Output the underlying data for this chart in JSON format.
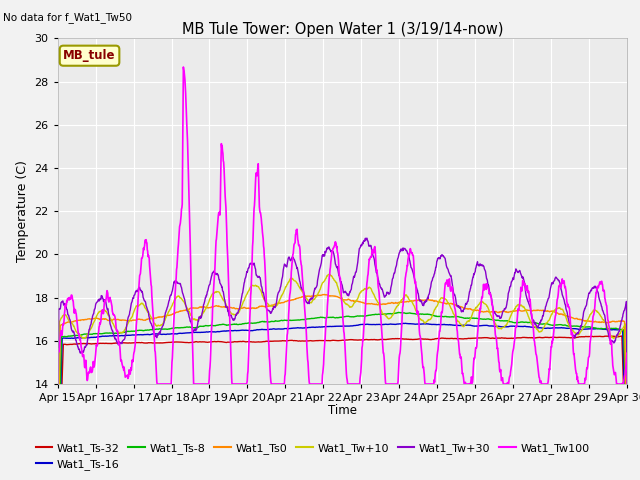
{
  "title": "MB Tule Tower: Open Water 1 (3/19/14-now)",
  "top_left_note": "No data for f_Wat1_Tw50",
  "ylabel": "Temperature (C)",
  "xlabel": "Time",
  "ylim": [
    14,
    30
  ],
  "yticks": [
    14,
    16,
    18,
    20,
    22,
    24,
    26,
    28,
    30
  ],
  "xtick_labels": [
    "Apr 15",
    "Apr 16",
    "Apr 17",
    "Apr 18",
    "Apr 19",
    "Apr 20",
    "Apr 21",
    "Apr 22",
    "Apr 23",
    "Apr 24",
    "Apr 25",
    "Apr 26",
    "Apr 27",
    "Apr 28",
    "Apr 29",
    "Apr 30"
  ],
  "plot_bg_color": "#ebebeb",
  "fig_bg_color": "#f2f2f2",
  "grid_color": "#ffffff",
  "series": {
    "Wat1_Ts-32": {
      "color": "#cc0000",
      "lw": 1.0
    },
    "Wat1_Ts-16": {
      "color": "#0000cc",
      "lw": 1.0
    },
    "Wat1_Ts-8": {
      "color": "#00bb00",
      "lw": 1.0
    },
    "Wat1_Ts0": {
      "color": "#ff8800",
      "lw": 1.0
    },
    "Wat1_Tw+10": {
      "color": "#cccc00",
      "lw": 1.0
    },
    "Wat1_Tw+30": {
      "color": "#8800cc",
      "lw": 1.0
    },
    "Wat1_Tw100": {
      "color": "#ff00ff",
      "lw": 1.2
    }
  },
  "legend_box_label": "MB_tule",
  "legend_box_color": "#ffffcc",
  "legend_box_edge": "#999900"
}
